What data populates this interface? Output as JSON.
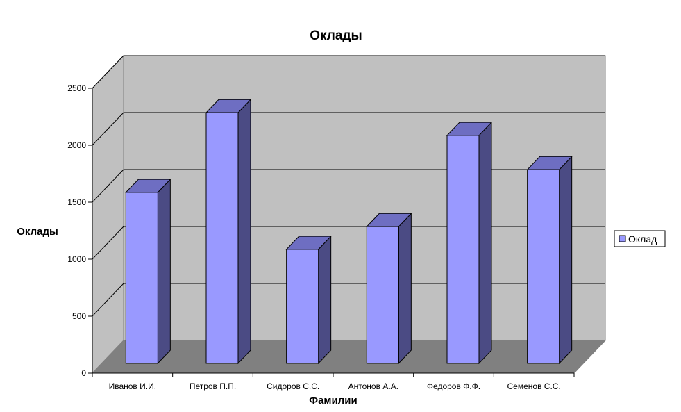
{
  "chart_data": {
    "type": "bar",
    "title": "Оклады",
    "xlabel": "Фамилии",
    "ylabel": "Оклады",
    "categories": [
      "Иванов И.И.",
      "Петров П.П.",
      "Сидоров С.С.",
      "Антонов А.А.",
      "Федоров Ф.Ф.",
      "Семенов С.С."
    ],
    "series": [
      {
        "name": "Оклад",
        "values": [
          1500,
          2200,
          1000,
          1200,
          2000,
          1700
        ]
      }
    ],
    "ylim": [
      0,
      2500
    ],
    "yticks": [
      "0",
      "500",
      "1000",
      "1500",
      "2000",
      "2500"
    ],
    "grid": true,
    "legend": "right",
    "style": "3d-column",
    "colors": {
      "bar_front": "#9999ff",
      "bar_side": "#4b4b84",
      "bar_top": "#6e6ec2",
      "back_wall": "#c0c0c0",
      "side_wall": "#c0c0c0",
      "floor": "#808080"
    }
  }
}
